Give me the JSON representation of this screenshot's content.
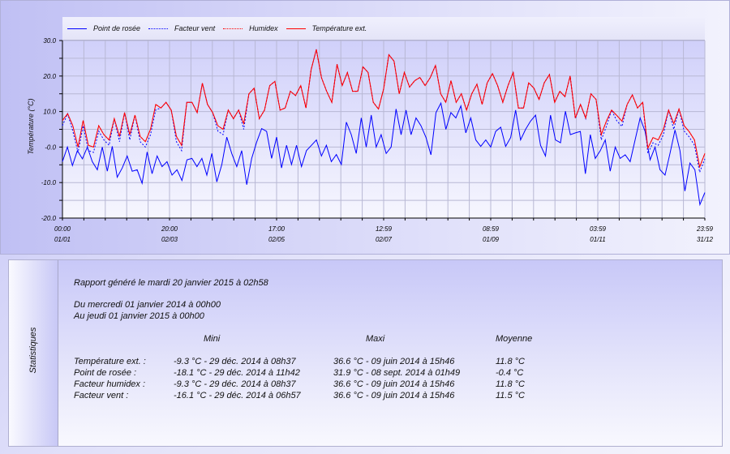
{
  "chart": {
    "legend": [
      {
        "label": "Point de rosée",
        "color": "#0000ff",
        "style": "solid"
      },
      {
        "label": "Facteur vent",
        "color": "#0000ff",
        "style": "dotted"
      },
      {
        "label": "Humidex",
        "color": "#ff0000",
        "style": "dotted"
      },
      {
        "label": "Température ext.",
        "color": "#ff0000",
        "style": "solid"
      }
    ],
    "y_label": "Température (°C)"
  },
  "chart_data": {
    "type": "line",
    "ylabel": "Température (°C)",
    "ylim": [
      -20,
      30
    ],
    "yticks": [
      "30.0",
      "20.0",
      "10.0",
      "-0.0",
      "-10.0",
      "-20.0"
    ],
    "xticks": [
      {
        "time": "00:00",
        "date": "01/01"
      },
      {
        "time": "20:00",
        "date": "02/03"
      },
      {
        "time": "17:00",
        "date": "02/05"
      },
      {
        "time": "12:59",
        "date": "02/07"
      },
      {
        "time": "08:59",
        "date": "01/09"
      },
      {
        "time": "03:59",
        "date": "01/11"
      },
      {
        "time": "23:59",
        "date": "31/12"
      }
    ],
    "x_range": [
      "01/01 00:00",
      "31/12 23:59"
    ],
    "grid": true,
    "legend_position": "top",
    "series": [
      {
        "name": "Point de rosée",
        "color": "#0000ff",
        "dash": false,
        "values": [
          -4.1,
          0,
          -5.2,
          -1,
          -3.3,
          0,
          -4.1,
          -6.4,
          0,
          -6.8,
          0.2,
          -8.5,
          -5.9,
          -2.5,
          -6.8,
          -6.4,
          -10.2,
          -1.4,
          -7.5,
          -2.5,
          -5.5,
          -4.1,
          -7.9,
          -6.4,
          -9.4,
          -3.6,
          -3.2,
          -5.5,
          -3.2,
          -7.9,
          -1.8,
          -9.8,
          -4.9,
          2.8,
          -1.8,
          -5.5,
          -1,
          -10.6,
          -3.2,
          1.4,
          5.2,
          4.4,
          -3.2,
          2.8,
          -5.9,
          0.5,
          -4.9,
          0.5,
          -5.5,
          -1,
          0.5,
          2,
          -2.5,
          0.5,
          -4.1,
          -2.1,
          -4.9,
          7,
          3.5,
          -1.8,
          8.2,
          0,
          9,
          0,
          3.5,
          -1.8,
          0,
          10.7,
          3.5,
          10.4,
          3.5,
          8.2,
          6,
          2.7,
          -2.2,
          9.7,
          12.4,
          5,
          9.7,
          8.2,
          11.6,
          4,
          8.2,
          2,
          0.2,
          2,
          0,
          4.4,
          5.6,
          0.2,
          2.7,
          10.4,
          2,
          5,
          7.3,
          9,
          0.5,
          -2.5,
          9,
          2,
          1.2,
          10.1,
          3.5,
          4,
          4.4,
          -7.5,
          3.5,
          -3.2,
          -1,
          2,
          -6.8,
          0,
          -3.2,
          -2.2,
          -4.1,
          2,
          8.2,
          4.4,
          -3.6,
          0,
          -6.4,
          -7.9,
          -1.8,
          4.8,
          -1,
          -12.4,
          -4.5,
          -6.4,
          -16.2,
          -12.8
        ]
      },
      {
        "name": "Facteur vent",
        "color": "#0000ff",
        "dash": true,
        "values": [
          6,
          9.4,
          4.5,
          -1.5,
          6,
          -1,
          -1.5,
          4.5,
          2,
          0.5,
          8,
          1.5,
          9.7,
          2,
          9,
          1.5,
          0,
          3.5,
          10.5,
          11,
          12.6,
          10.4,
          1.5,
          -1,
          12.6,
          12.6,
          9.7,
          18,
          12,
          9.7,
          4.5,
          3.5,
          10.4,
          8,
          10.4,
          5,
          15,
          16.6,
          8,
          10.4,
          17.3,
          18.5,
          10.4,
          11,
          15.7,
          14.5,
          17.3,
          11,
          21.8,
          27.5,
          19.5,
          15.7,
          12.6,
          23.3,
          17.3,
          21,
          15.7,
          15.7,
          22.6,
          21,
          12.6,
          10.7,
          16.4,
          26,
          24.2,
          15,
          21,
          16.9,
          18.7,
          19.6,
          17.3,
          19.6,
          23,
          15,
          12.6,
          18.7,
          12.6,
          15,
          10.4,
          15,
          17.7,
          12,
          18.1,
          20.7,
          17.3,
          12.6,
          17.3,
          21,
          11,
          11,
          18.1,
          16.6,
          13.4,
          18.1,
          20.4,
          12.6,
          15.7,
          14.2,
          20,
          8,
          12,
          8,
          15,
          13.4,
          2,
          5.8,
          10.4,
          7.4,
          5.8,
          12,
          14.7,
          11,
          12.6,
          -1.8,
          1.2,
          0.5,
          3.5,
          10.4,
          5,
          10.7,
          4.5,
          2.8,
          0.5,
          -7.1,
          -3.3
        ]
      },
      {
        "name": "Humidex",
        "color": "#ff0000",
        "dash": true,
        "values": [
          7.5,
          9.4,
          6,
          0,
          7.5,
          0.5,
          0,
          6,
          3.5,
          2,
          8,
          3,
          9.7,
          3.5,
          9,
          3,
          1.5,
          5,
          12,
          11,
          12.6,
          10.4,
          3,
          0.5,
          12.6,
          12.6,
          9.7,
          18,
          12,
          9.7,
          6,
          5,
          10.4,
          8,
          10.4,
          6.6,
          15,
          16.6,
          8,
          10.4,
          17.3,
          18.5,
          10.4,
          11,
          15.7,
          14.5,
          17.3,
          11,
          21.8,
          27.5,
          19.5,
          15.7,
          12.6,
          23.3,
          17.3,
          21,
          15.7,
          15.7,
          22.6,
          21,
          12.6,
          10.7,
          16.4,
          26,
          24.2,
          15,
          21,
          16.9,
          18.7,
          19.6,
          17.3,
          19.6,
          23,
          15,
          12.6,
          18.7,
          12.6,
          15,
          10.4,
          15,
          17.7,
          12,
          18.1,
          20.7,
          17.3,
          12.6,
          17.3,
          21,
          11,
          11,
          18.1,
          16.6,
          13.4,
          18.1,
          20.4,
          12.6,
          15.7,
          14.2,
          20,
          8.2,
          12,
          8.2,
          15,
          13.4,
          3.5,
          7.3,
          10.4,
          8.9,
          7.3,
          12,
          14.7,
          11,
          12.6,
          -0.3,
          2.7,
          2,
          5,
          10.4,
          6.6,
          10.7,
          6,
          4.3,
          2,
          -5.6,
          -1.8
        ]
      },
      {
        "name": "Température ext.",
        "color": "#ff0000",
        "dash": false,
        "values": [
          7.5,
          9.4,
          6,
          0,
          7.5,
          0.5,
          0,
          6,
          3.5,
          2,
          8,
          3,
          9.7,
          3.5,
          9,
          3,
          1.5,
          5,
          12,
          11,
          12.6,
          10.4,
          3,
          0.5,
          12.6,
          12.6,
          9.7,
          18,
          12,
          9.7,
          6,
          5,
          10.4,
          8,
          10.4,
          6.6,
          15,
          16.6,
          8,
          10.4,
          17.3,
          18.5,
          10.4,
          11,
          15.7,
          14.5,
          17.3,
          11,
          21.8,
          27.5,
          19.5,
          15.7,
          12.6,
          23.3,
          17.3,
          21,
          15.7,
          15.7,
          22.6,
          21,
          12.6,
          10.7,
          16.4,
          26,
          24.2,
          15,
          21,
          16.9,
          18.7,
          19.6,
          17.3,
          19.6,
          23,
          15,
          12.6,
          18.7,
          12.6,
          15,
          10.4,
          15,
          17.7,
          12,
          18.1,
          20.7,
          17.3,
          12.6,
          17.3,
          21,
          11,
          11,
          18.1,
          16.6,
          13.4,
          18.1,
          20.4,
          12.6,
          15.7,
          14.2,
          20,
          8.2,
          12,
          8.2,
          15,
          13.4,
          3.5,
          7.3,
          10.4,
          8.9,
          7.3,
          12,
          14.7,
          11,
          12.6,
          -0.3,
          2.7,
          2,
          5,
          10.4,
          6.6,
          10.7,
          6,
          4.3,
          2,
          -5.6,
          -1.8
        ]
      }
    ]
  },
  "stats": {
    "title": "Statistiques",
    "generated": "Rapport généré le mardi 20 janvier 2015 à 02h58",
    "from": "Du mercredi 01 janvier 2014 à 00h00",
    "to": "Au jeudi 01 janvier 2015 à 00h00",
    "headers": {
      "min": "Mini",
      "max": "Maxi",
      "avg": "Moyenne"
    },
    "rows": [
      {
        "label": "Température ext. :",
        "min": "-9.3 °C - 29 déc. 2014 à 08h37",
        "max": "36.6 °C - 09 juin 2014 à 15h46",
        "avg": "11.8 °C"
      },
      {
        "label": "Point de rosée :",
        "min": "-18.1 °C - 29 déc. 2014 à 11h42",
        "max": "31.9 °C - 08 sept. 2014 à 01h49",
        "avg": "-0.4 °C"
      },
      {
        "label": "Facteur humidex :",
        "min": "-9.3 °C - 29 déc. 2014 à 08h37",
        "max": "36.6 °C - 09 juin 2014 à 15h46",
        "avg": "11.8 °C"
      },
      {
        "label": "Facteur vent :",
        "min": "-16.1 °C - 29 déc. 2014 à 06h57",
        "max": "36.6 °C - 09 juin 2014 à 15h46",
        "avg": "11.5 °C"
      }
    ]
  }
}
